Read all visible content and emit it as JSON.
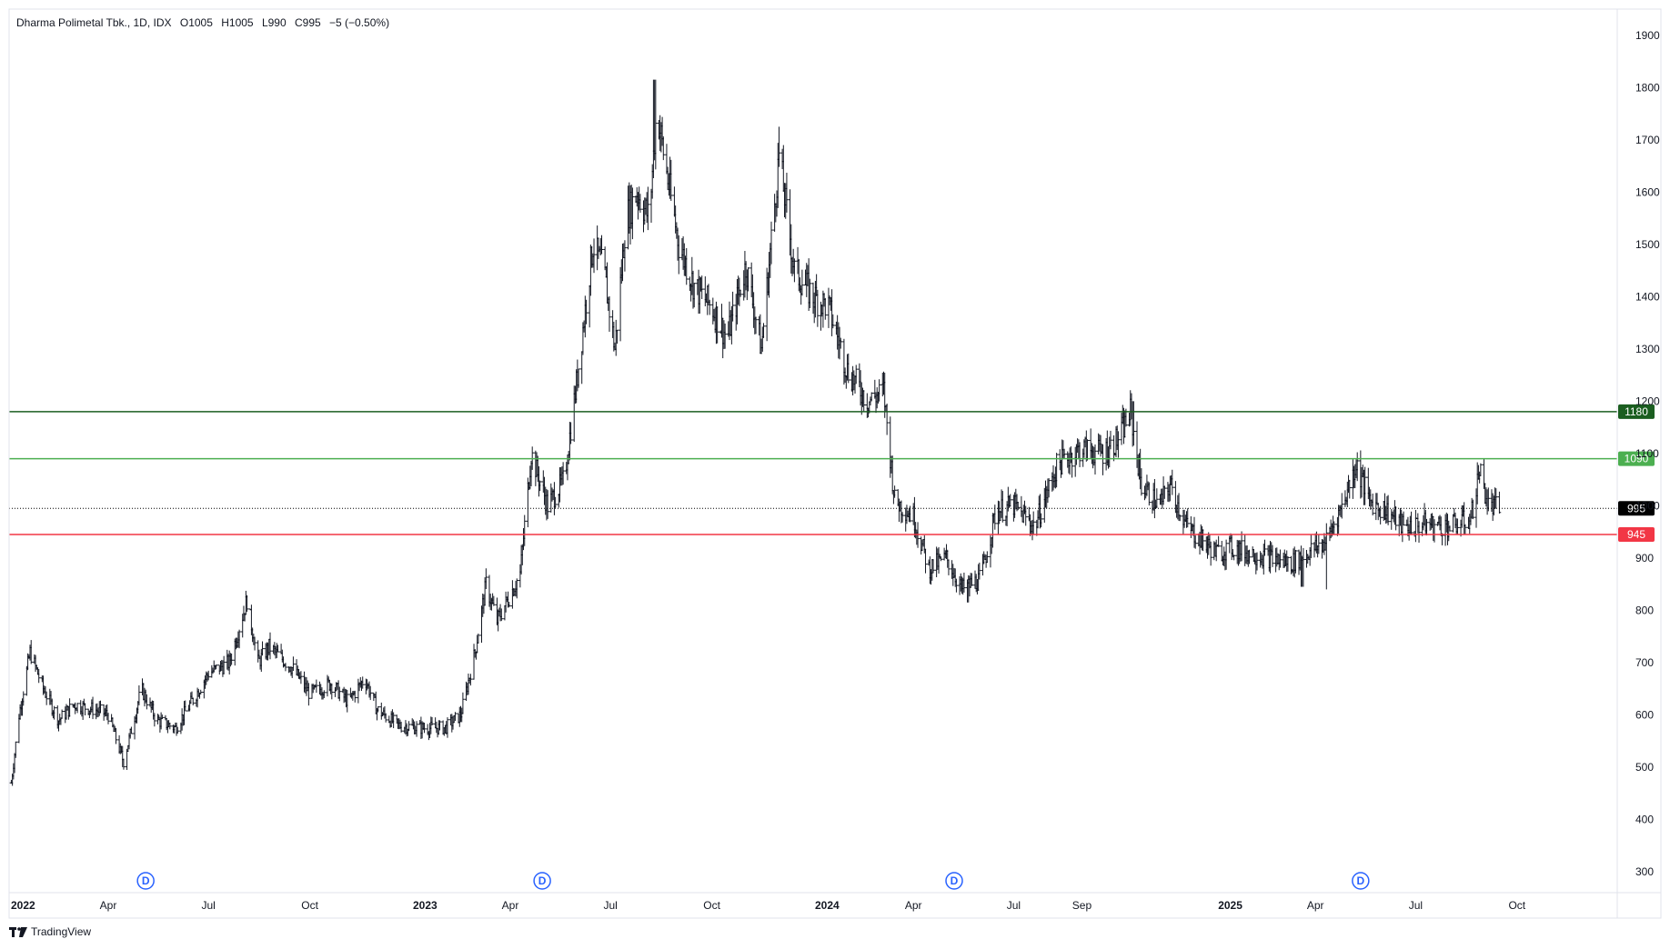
{
  "legend": {
    "symbol": "Dharma Polimetal Tbk., 1D, IDX",
    "open": "O1005",
    "high": "H1005",
    "low": "L990",
    "close": "C995",
    "change": "−5 (−0.50%)"
  },
  "branding": {
    "name": "TradingView",
    "logo": "tradingview-logo"
  },
  "chart_data": {
    "type": "ohlc",
    "title": "Dharma Polimetal Tbk., 1D, IDX",
    "x_range": [
      "2022-01-01",
      "2025-12-31"
    ],
    "y_range": [
      260,
      1950
    ],
    "y_ticks": [
      300,
      400,
      500,
      600,
      700,
      800,
      900,
      1000,
      1100,
      1200,
      1300,
      1400,
      1500,
      1600,
      1700,
      1800,
      1900
    ],
    "x_ticks": [
      {
        "date": "2022-01-01",
        "label": "2022",
        "bold": true
      },
      {
        "date": "2022-04-01",
        "label": "Apr",
        "bold": false
      },
      {
        "date": "2022-07-01",
        "label": "Jul",
        "bold": false
      },
      {
        "date": "2022-10-01",
        "label": "Oct",
        "bold": false
      },
      {
        "date": "2023-01-01",
        "label": "2023",
        "bold": true
      },
      {
        "date": "2023-04-01",
        "label": "Apr",
        "bold": false
      },
      {
        "date": "2023-07-01",
        "label": "Jul",
        "bold": false
      },
      {
        "date": "2023-10-01",
        "label": "Oct",
        "bold": false
      },
      {
        "date": "2024-01-01",
        "label": "2024",
        "bold": true
      },
      {
        "date": "2024-04-01",
        "label": "Apr",
        "bold": false
      },
      {
        "date": "2024-07-01",
        "label": "Jul",
        "bold": false
      },
      {
        "date": "2024-09-01",
        "label": "Sep",
        "bold": false
      },
      {
        "date": "2025-01-01",
        "label": "2025",
        "bold": true
      },
      {
        "date": "2025-04-01",
        "label": "Apr",
        "bold": false
      },
      {
        "date": "2025-07-01",
        "label": "Jul",
        "bold": false
      },
      {
        "date": "2025-10-01",
        "label": "Oct",
        "bold": false
      }
    ],
    "price_path": [
      [
        "2022-01-03",
        470
      ],
      [
        "2022-01-10",
        600
      ],
      [
        "2022-01-20",
        720
      ],
      [
        "2022-02-01",
        650
      ],
      [
        "2022-02-15",
        590
      ],
      [
        "2022-03-01",
        620
      ],
      [
        "2022-03-20",
        610
      ],
      [
        "2022-04-01",
        600
      ],
      [
        "2022-04-15",
        510
      ],
      [
        "2022-05-01",
        650
      ],
      [
        "2022-05-15",
        590
      ],
      [
        "2022-06-01",
        575
      ],
      [
        "2022-06-20",
        640
      ],
      [
        "2022-07-01",
        680
      ],
      [
        "2022-07-20",
        700
      ],
      [
        "2022-08-05",
        820
      ],
      [
        "2022-08-15",
        700
      ],
      [
        "2022-08-25",
        730
      ],
      [
        "2022-09-15",
        690
      ],
      [
        "2022-10-01",
        640
      ],
      [
        "2022-10-20",
        660
      ],
      [
        "2022-11-05",
        625
      ],
      [
        "2022-11-20",
        670
      ],
      [
        "2022-12-01",
        610
      ],
      [
        "2022-12-20",
        580
      ],
      [
        "2023-01-10",
        575
      ],
      [
        "2023-02-01",
        575
      ],
      [
        "2023-02-15",
        600
      ],
      [
        "2023-02-28",
        720
      ],
      [
        "2023-03-10",
        850
      ],
      [
        "2023-03-20",
        780
      ],
      [
        "2023-04-01",
        830
      ],
      [
        "2023-04-10",
        870
      ],
      [
        "2023-04-20",
        1100
      ],
      [
        "2023-05-05",
        1000
      ],
      [
        "2023-05-20",
        1050
      ],
      [
        "2023-06-01",
        1250
      ],
      [
        "2023-06-15",
        1500
      ],
      [
        "2023-06-25",
        1450
      ],
      [
        "2023-07-05",
        1300
      ],
      [
        "2023-07-15",
        1550
      ],
      [
        "2023-07-25",
        1600
      ],
      [
        "2023-08-05",
        1550
      ],
      [
        "2023-08-12",
        1760
      ],
      [
        "2023-08-20",
        1650
      ],
      [
        "2023-09-01",
        1500
      ],
      [
        "2023-09-15",
        1420
      ],
      [
        "2023-10-01",
        1380
      ],
      [
        "2023-10-15",
        1320
      ],
      [
        "2023-11-01",
        1460
      ],
      [
        "2023-11-15",
        1300
      ],
      [
        "2023-12-01",
        1670
      ],
      [
        "2023-12-15",
        1450
      ],
      [
        "2024-01-01",
        1400
      ],
      [
        "2024-01-15",
        1380
      ],
      [
        "2024-02-01",
        1260
      ],
      [
        "2024-02-20",
        1200
      ],
      [
        "2024-03-05",
        1220
      ],
      [
        "2024-03-15",
        1010
      ],
      [
        "2024-04-01",
        980
      ],
      [
        "2024-04-15",
        880
      ],
      [
        "2024-05-01",
        900
      ],
      [
        "2024-05-15",
        840
      ],
      [
        "2024-06-01",
        860
      ],
      [
        "2024-06-15",
        990
      ],
      [
        "2024-07-01",
        1000
      ],
      [
        "2024-07-20",
        960
      ],
      [
        "2024-08-10",
        1080
      ],
      [
        "2024-09-01",
        1110
      ],
      [
        "2024-09-20",
        1100
      ],
      [
        "2024-10-05",
        1130
      ],
      [
        "2024-10-15",
        1180
      ],
      [
        "2024-10-25",
        1040
      ],
      [
        "2024-11-10",
        1000
      ],
      [
        "2024-11-20",
        1040
      ],
      [
        "2024-12-05",
        960
      ],
      [
        "2025-01-01",
        910
      ],
      [
        "2025-01-15",
        920
      ],
      [
        "2025-02-01",
        910
      ],
      [
        "2025-02-20",
        900
      ],
      [
        "2025-03-10",
        890
      ],
      [
        "2025-03-25",
        910
      ],
      [
        "2025-04-10",
        930
      ],
      [
        "2025-04-25",
        1000
      ],
      [
        "2025-05-08",
        1080
      ],
      [
        "2025-05-20",
        1010
      ],
      [
        "2025-06-05",
        990
      ],
      [
        "2025-06-20",
        960
      ],
      [
        "2025-07-10",
        965
      ],
      [
        "2025-08-01",
        960
      ],
      [
        "2025-08-20",
        975
      ],
      [
        "2025-08-28",
        1070
      ],
      [
        "2025-09-05",
        1000
      ],
      [
        "2025-09-15",
        995
      ]
    ],
    "extremes": [
      {
        "date": "2023-08-10",
        "high": 1815
      },
      {
        "date": "2023-12-02",
        "high": 1725
      },
      {
        "date": "2024-10-18",
        "high": 1200
      },
      {
        "date": "2022-04-15",
        "low": 500
      },
      {
        "date": "2024-05-20",
        "low": 815
      },
      {
        "date": "2025-03-20",
        "low": 845
      },
      {
        "date": "2025-04-12",
        "low": 840
      }
    ],
    "horizontal_lines": [
      {
        "value": 1180,
        "label": "1180",
        "color": "#1b5e20",
        "style": "solid"
      },
      {
        "value": 1090,
        "label": "1090",
        "color": "#4caf50",
        "style": "solid"
      },
      {
        "value": 995,
        "label": "995",
        "color": "#000000",
        "style": "dotted",
        "label_color": "#000000"
      },
      {
        "value": 945,
        "label": "945",
        "color": "#f23645",
        "style": "solid"
      }
    ],
    "dividend_markers": [
      {
        "date": "2022-05-05",
        "label": "D"
      },
      {
        "date": "2023-04-30",
        "label": "D"
      },
      {
        "date": "2024-05-08",
        "label": "D"
      },
      {
        "date": "2025-05-12",
        "label": "D"
      }
    ],
    "colors": {
      "bar": "#131722",
      "grid_border": "#e0e3eb",
      "dividend": "#2962ff"
    }
  }
}
